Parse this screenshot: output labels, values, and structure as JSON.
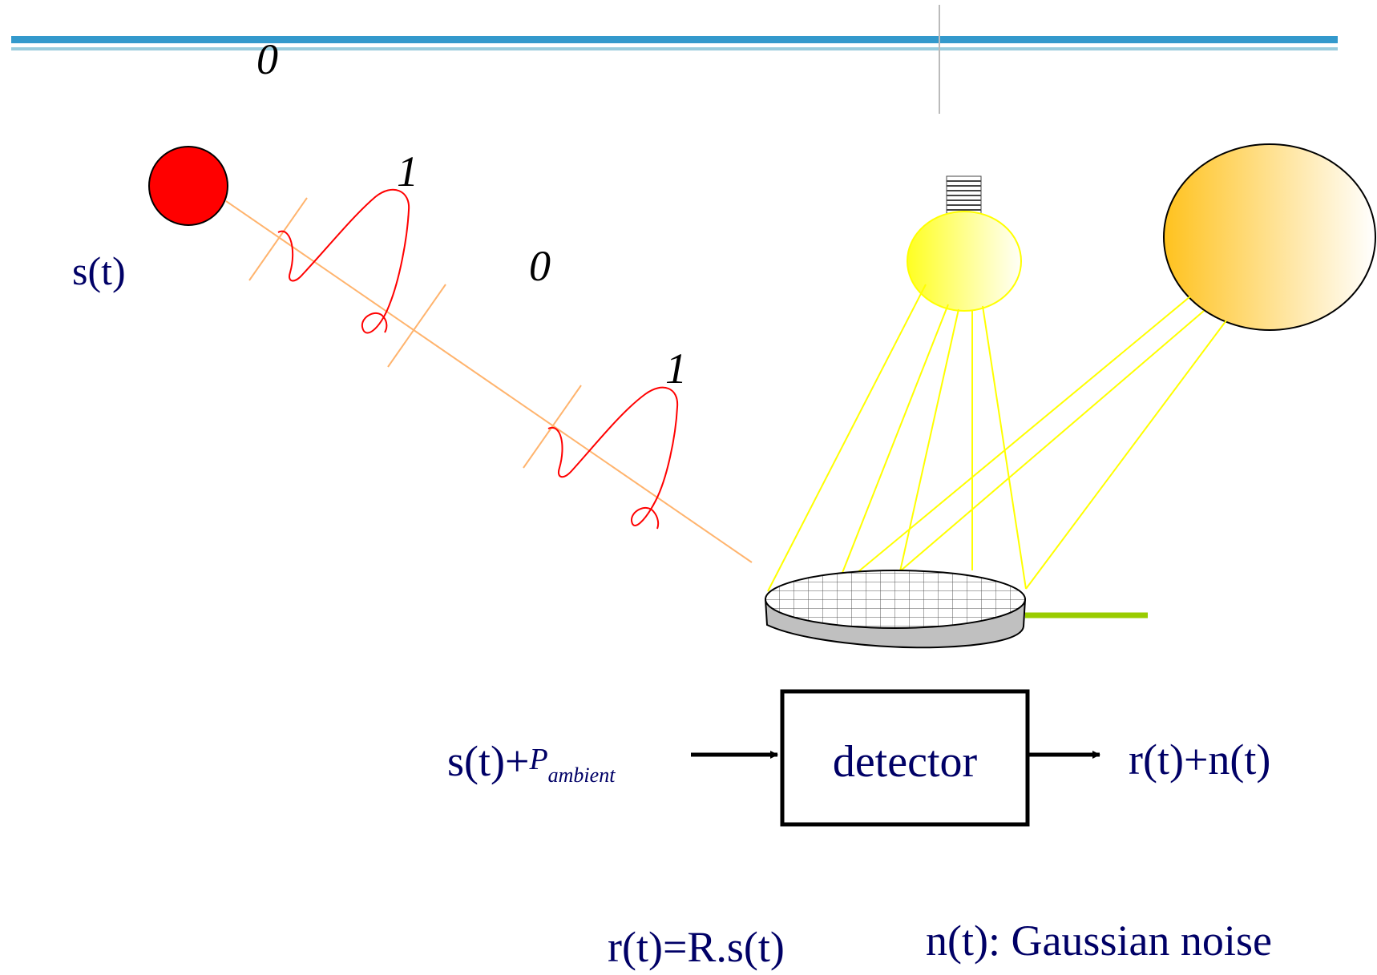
{
  "header": {
    "bit_label_top": "0"
  },
  "source": {
    "label": "s(t)",
    "color": "#FF0000"
  },
  "pulses": {
    "bit_labels": [
      "1",
      "0",
      "1"
    ],
    "pulse_color": "#FF0000",
    "beam_color": "#FFB46E"
  },
  "ambient_sources": {
    "lamp_color": "#FFFF44",
    "sun_color": "#FFC832",
    "ray_color": "#FFFF00"
  },
  "block_diagram": {
    "input_prefix": "s(t)+",
    "input_power_symbol": "P",
    "input_power_subscript": "ambient",
    "detector_label": "detector",
    "output_label": "r(t)+n(t)"
  },
  "equations": {
    "response": "r(t)=R.s(t)",
    "noise": "n(t): Gaussian noise"
  },
  "colors": {
    "header_bar_dark": "#3399CC",
    "header_bar_light": "#99CCDD",
    "text_navy": "#000066",
    "detector_lead": "#99CC00"
  }
}
